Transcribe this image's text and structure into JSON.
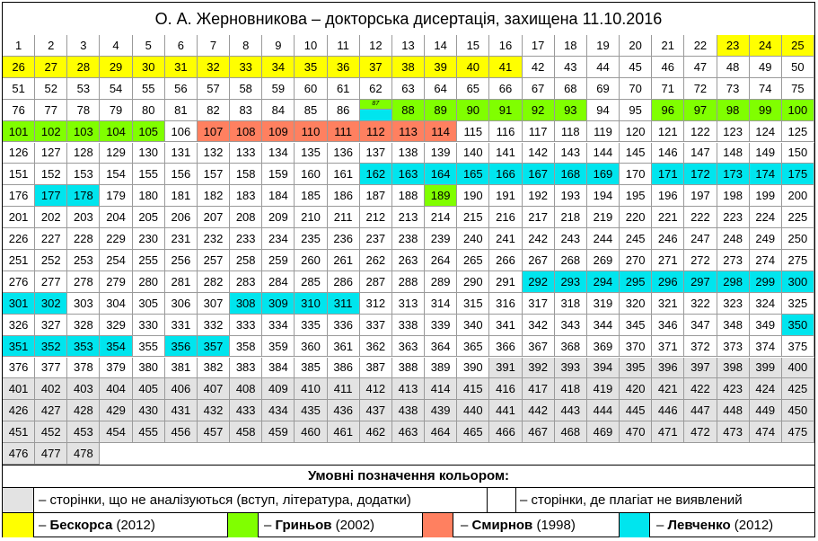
{
  "title": "О. А. Жерновникова – докторська дисертація, захищена 11.10.2016",
  "grid": {
    "columns": 25,
    "rows": 20,
    "last_page": 478,
    "colors": {
      "yellow": "#ffff00",
      "green": "#80ff00",
      "red": "#ff8060",
      "cyan": "#00e5ee",
      "grey": "#e3e3e3",
      "white": "#ffffff"
    },
    "yellow": [
      [
        23,
        41
      ]
    ],
    "green": [
      [
        88,
        93
      ],
      [
        96,
        105
      ],
      [
        189,
        189
      ]
    ],
    "red": [
      [
        107,
        114
      ]
    ],
    "cyan": [
      [
        162,
        169
      ],
      [
        171,
        175
      ],
      [
        177,
        178
      ],
      [
        292,
        302
      ],
      [
        308,
        311
      ],
      [
        350,
        354
      ],
      [
        356,
        357
      ]
    ],
    "grey": [
      [
        391,
        478
      ]
    ],
    "split_cell": {
      "page": 87,
      "label": "87"
    }
  },
  "legend": {
    "title": "Умовні позначення кольором:",
    "grey_text": "– сторінки, що не аналізуються (вступ, література, додатки)",
    "white_text": "– сторінки, де плагіат не виявлений",
    "items": [
      {
        "name": "Бескорса",
        "year": "(2012)",
        "prefix": "–",
        "color": "#ffff00"
      },
      {
        "name": "Гриньов",
        "year": "(2002)",
        "prefix": "–",
        "color": "#80ff00"
      },
      {
        "name": "Смирнов",
        "year": "(1998)",
        "prefix": "–",
        "color": "#ff8060"
      },
      {
        "name": "Левченко",
        "year": "(2012)",
        "prefix": "–",
        "color": "#00e5ee"
      }
    ]
  }
}
